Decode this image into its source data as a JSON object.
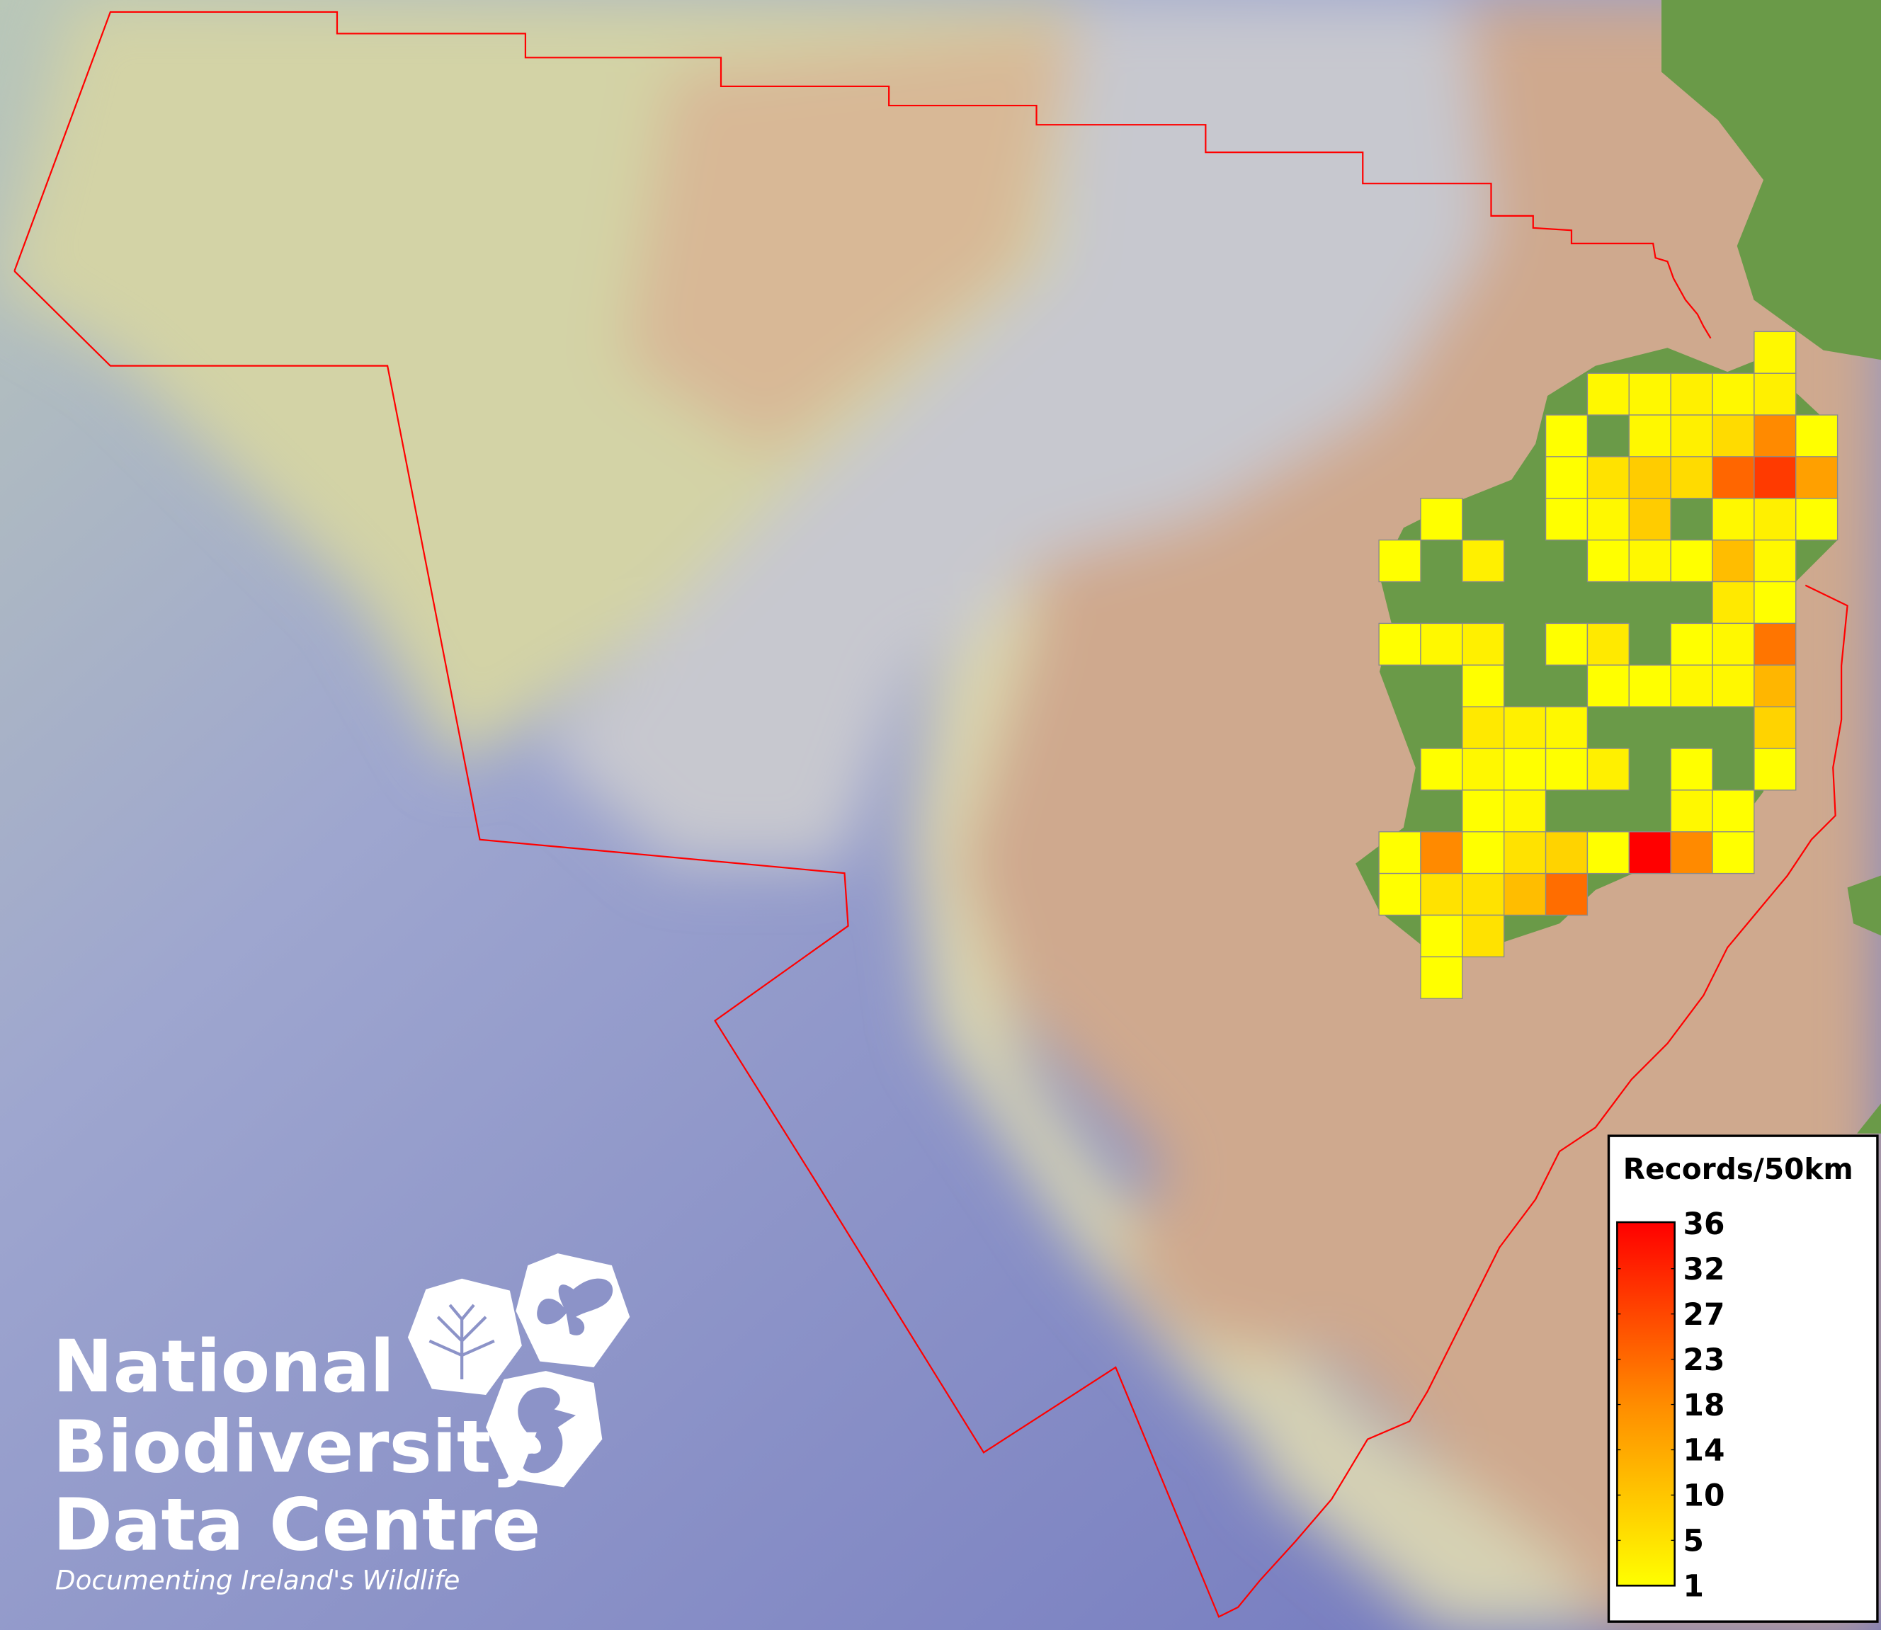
{
  "legend": {
    "title": "Records/50km",
    "ticks": [
      "36",
      "32",
      "27",
      "23",
      "18",
      "14",
      "10",
      "5",
      "1"
    ],
    "min": 1,
    "max": 36,
    "color_min": "#ffff00",
    "color_max": "#ff0000"
  },
  "logo": {
    "line1": "National",
    "line2": "Biodiversity",
    "line3": "Data Centre",
    "tagline": "Documenting Ireland's Wildlife"
  },
  "colors": {
    "boundary": "#ff0000",
    "land": "#6a9a48",
    "shelf": "#cfa98e",
    "deep_sea": "#7f86c4",
    "cell_border": "#8a8a8a"
  },
  "grid_values": [
    [
      null,
      null,
      null,
      null,
      null,
      null,
      null,
      null,
      null,
      2,
      null
    ],
    [
      null,
      null,
      null,
      null,
      null,
      2,
      2,
      3,
      2,
      3,
      null
    ],
    [
      null,
      null,
      null,
      null,
      1,
      null,
      2,
      3,
      6,
      17,
      1
    ],
    [
      null,
      null,
      null,
      null,
      1,
      5,
      8,
      6,
      22,
      28,
      14
    ],
    [
      null,
      1,
      null,
      null,
      1,
      2,
      8,
      null,
      2,
      3,
      1
    ],
    [
      1,
      null,
      3,
      null,
      null,
      1,
      2,
      1,
      10,
      2,
      null
    ],
    [
      null,
      null,
      null,
      null,
      null,
      null,
      null,
      null,
      4,
      1,
      null
    ],
    [
      1,
      2,
      3,
      null,
      1,
      4,
      null,
      1,
      2,
      20,
      null
    ],
    [
      null,
      null,
      1,
      null,
      null,
      1,
      1,
      2,
      2,
      11,
      null
    ],
    [
      null,
      null,
      4,
      3,
      2,
      null,
      null,
      null,
      null,
      7,
      null
    ],
    [
      null,
      1,
      2,
      1,
      1,
      3,
      null,
      1,
      null,
      1,
      null
    ],
    [
      null,
      null,
      1,
      2,
      null,
      null,
      null,
      2,
      1,
      null,
      null
    ],
    [
      1,
      17,
      1,
      5,
      7,
      1,
      36,
      17,
      1,
      null,
      null
    ],
    [
      1,
      5,
      5,
      10,
      21,
      null,
      null,
      null,
      null,
      null,
      null
    ],
    [
      null,
      1,
      5,
      null,
      null,
      null,
      null,
      null,
      null,
      null,
      null
    ],
    [
      null,
      1,
      null,
      null,
      null,
      null,
      null,
      null,
      null,
      null,
      null
    ]
  ]
}
